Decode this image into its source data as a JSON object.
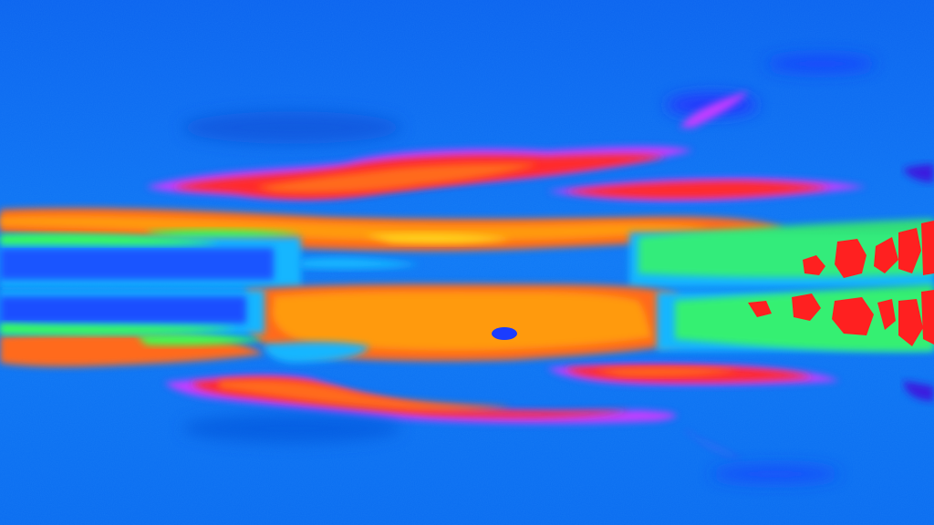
{
  "image": {
    "kind": "false-color thermal-style landscape photo",
    "palette": {
      "sky": "#0a6cf0",
      "deep_blue": "#1a3cff",
      "cyan": "#17b6ff",
      "violet": "#c43cff",
      "magenta": "#ff2fd0",
      "red": "#ff2a2a",
      "orange": "#ff6a1a",
      "amber": "#ff9a10",
      "yellow": "#ffd21a",
      "green": "#3cff50",
      "lime": "#a8ff30",
      "dark_violet": "#3a1adf"
    }
  }
}
